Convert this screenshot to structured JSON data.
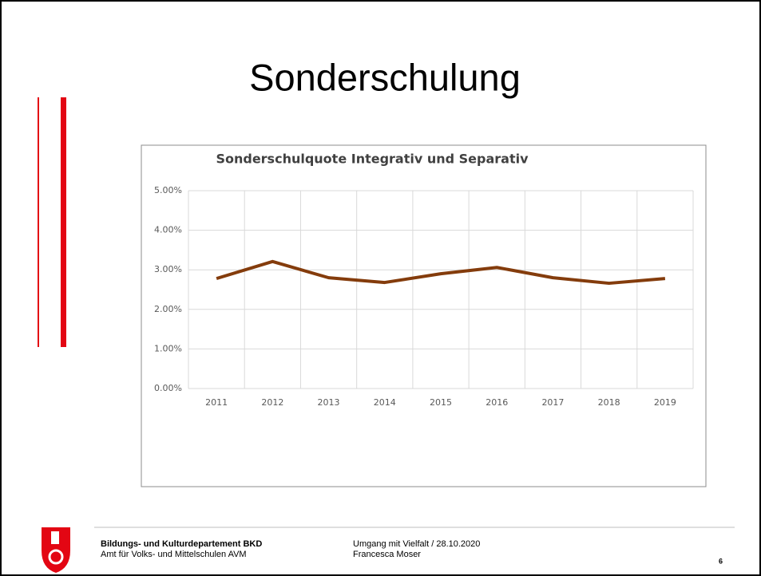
{
  "slide": {
    "title": "Sonderschulung"
  },
  "chart_data": {
    "type": "line",
    "title": "Sonderschulquote Integrativ und Separativ",
    "categories": [
      "2011",
      "2012",
      "2013",
      "2014",
      "2015",
      "2016",
      "2017",
      "2018",
      "2019"
    ],
    "series": [
      {
        "color": "#843c0c",
        "values": [
          2.78,
          3.21,
          2.8,
          2.68,
          2.9,
          3.06,
          2.8,
          2.66,
          2.78
        ]
      }
    ],
    "ylim": [
      0,
      5
    ],
    "yticks": [
      {
        "value": 0,
        "label": "0.00%"
      },
      {
        "value": 1,
        "label": "1.00%"
      },
      {
        "value": 2,
        "label": "2.00%"
      },
      {
        "value": 3,
        "label": "3.00%"
      },
      {
        "value": 4,
        "label": "4.00%"
      },
      {
        "value": 5,
        "label": "5.00%"
      }
    ],
    "grid": true
  },
  "footer": {
    "department": "Bildungs- und Kulturdepartement BKD",
    "office": "Amt für Volks- und Mittelschulen AVM",
    "event": "Umgang mit Vielfalt / 28.10.2020",
    "author": "Francesca Moser",
    "page": "6"
  }
}
